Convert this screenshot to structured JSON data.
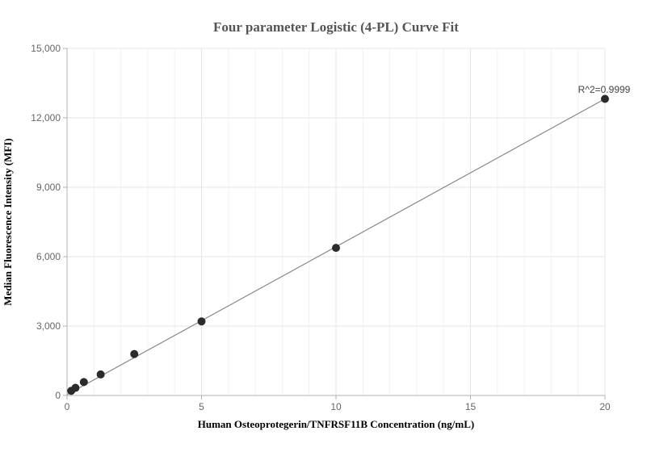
{
  "chart_data": {
    "type": "scatter",
    "title": "Four parameter Logistic (4-PL) Curve Fit",
    "xlabel": "Human Osteoprotegerin/TNFRSF11B Concentration (ng/mL)",
    "ylabel": "Median Fluorescence Intensity (MFI)",
    "xlim": [
      0,
      20
    ],
    "ylim": [
      0,
      15000
    ],
    "x_ticks": [
      0,
      5,
      10,
      15,
      20
    ],
    "x_tick_labels": [
      "0",
      "5",
      "10",
      "15",
      "20"
    ],
    "y_ticks": [
      0,
      3000,
      6000,
      9000,
      12000,
      15000
    ],
    "y_tick_labels": [
      "0",
      "3,000",
      "6,000",
      "9,000",
      "12,000",
      "15,000"
    ],
    "grid": true,
    "points": [
      {
        "x": 0.156,
        "y": 200
      },
      {
        "x": 0.313,
        "y": 330
      },
      {
        "x": 0.625,
        "y": 580
      },
      {
        "x": 1.25,
        "y": 910
      },
      {
        "x": 2.5,
        "y": 1790
      },
      {
        "x": 5,
        "y": 3200
      },
      {
        "x": 10,
        "y": 6380
      },
      {
        "x": 20,
        "y": 12820
      }
    ],
    "fit_curve": {
      "x": [
        0,
        20
      ],
      "y": [
        40,
        12820
      ]
    },
    "annotation": "R^2=0.9999",
    "colors": {
      "points": "#2b2b2b",
      "fit_line": "#8a8a8a",
      "grid": "#e6e6e6",
      "axis": "#b0b0b0"
    }
  }
}
